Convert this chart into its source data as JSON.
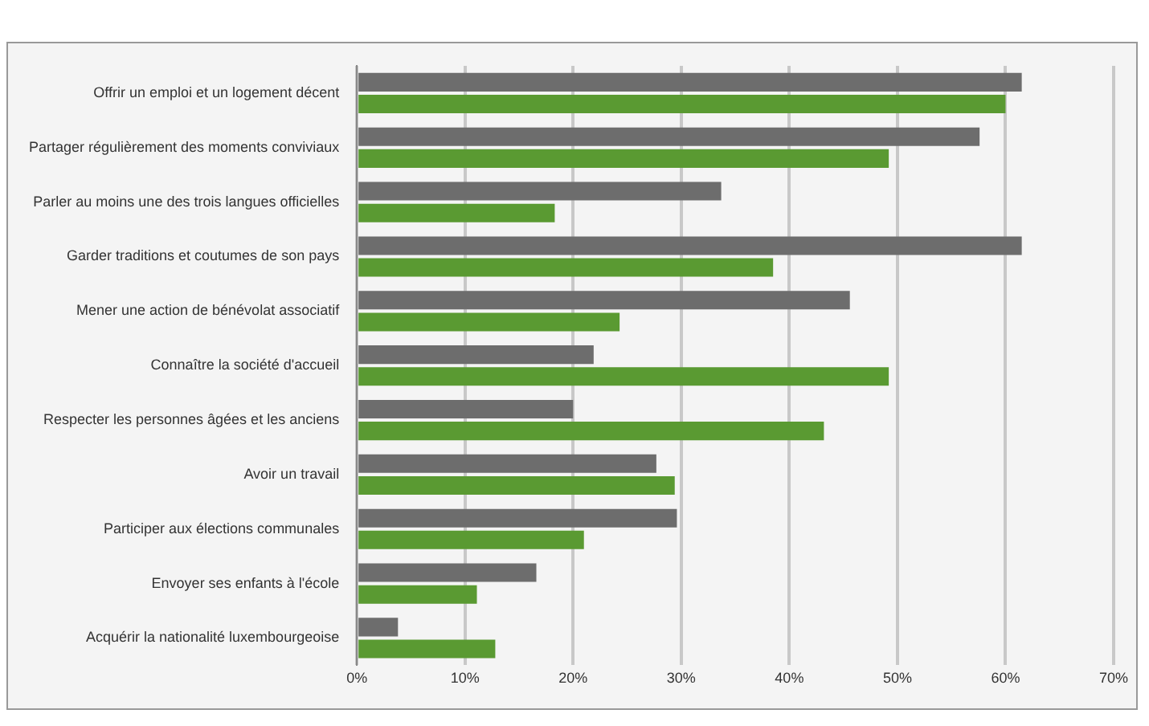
{
  "chart_data": {
    "type": "bar",
    "orientation": "horizontal",
    "categories": [
      "Offrir un emploi et un logement décent",
      "Partager régulièrement des moments conviviaux",
      "Parler au moins une des trois langues officielles",
      "Garder traditions et coutumes de son pays",
      "Mener une action de bénévolat associatif",
      "Connaître la société d'accueil",
      "Respecter les personnes âgées et les anciens",
      "Avoir un travail",
      "Participer aux élections communales",
      "Envoyer ses enfants à l'école",
      "Acquérir la nationalité luxembourgeoise"
    ],
    "series": [
      {
        "color": "#6d6d6d",
        "values": [
          61.5,
          57.6,
          33.7,
          61.5,
          45.6,
          21.9,
          20,
          27.7,
          29.6,
          16.6,
          3.8
        ]
      },
      {
        "color": "#5a9a32",
        "values": [
          60,
          49.2,
          18.3,
          38.5,
          24.3,
          49.2,
          43.2,
          29.4,
          21,
          11.1,
          12.8
        ]
      }
    ],
    "xlim": [
      0,
      70
    ],
    "xticks": [
      {
        "value": 0,
        "label": "0%"
      },
      {
        "value": 10,
        "label": "10%"
      },
      {
        "value": 20,
        "label": "20%"
      },
      {
        "value": 30,
        "label": "30%"
      },
      {
        "value": 40,
        "label": "40%"
      },
      {
        "value": 50,
        "label": "50%"
      },
      {
        "value": 60,
        "label": "60%"
      },
      {
        "value": 70,
        "label": "70%"
      }
    ],
    "grid": "x",
    "legend": false
  }
}
